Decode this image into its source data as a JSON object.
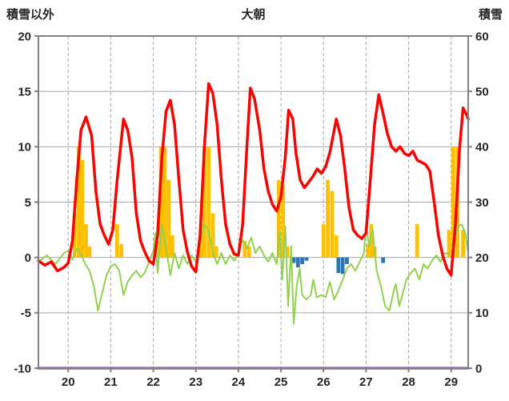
{
  "header": {
    "left_axis_title": "積雪以外",
    "title": "大朝",
    "right_axis_title": "積雪"
  },
  "chart_data": {
    "type": "combo",
    "title": "大朝",
    "x_axis": {
      "min": 19.3,
      "max": 29.4,
      "ticks": [
        20,
        21,
        22,
        23,
        24,
        25,
        26,
        27,
        28,
        29
      ]
    },
    "left_axis": {
      "label": "積雪以外",
      "min": -10,
      "max": 20,
      "tick_step": 5,
      "ticks": [
        20,
        15,
        10,
        5,
        0,
        -5,
        -10
      ]
    },
    "right_axis": {
      "label": "積雪",
      "min": 0,
      "max": 60,
      "tick_step": 10,
      "ticks": [
        60,
        50,
        40,
        30,
        20,
        10,
        0
      ]
    },
    "grid": {
      "h_color": "#a6a6a6",
      "v_color": "#a6a6a6",
      "v_dashed": true,
      "border_color": "#808080",
      "text_color": "#262626"
    },
    "legend": "none",
    "series": [
      {
        "name": "orange-bars",
        "type": "bar",
        "axis": "left",
        "color": "#FFC000",
        "bar_width": 0.09,
        "values": [
          [
            20.15,
            4
          ],
          [
            20.25,
            10
          ],
          [
            20.33,
            8.8
          ],
          [
            20.42,
            3
          ],
          [
            20.5,
            1
          ],
          [
            21.15,
            3
          ],
          [
            21.25,
            1.2
          ],
          [
            22.1,
            1.5
          ],
          [
            22.18,
            10
          ],
          [
            22.27,
            10
          ],
          [
            22.36,
            7
          ],
          [
            22.45,
            2
          ],
          [
            23.12,
            3
          ],
          [
            23.2,
            10
          ],
          [
            23.3,
            10
          ],
          [
            23.4,
            4
          ],
          [
            23.48,
            1
          ],
          [
            24.15,
            1.5
          ],
          [
            24.25,
            1
          ],
          [
            24.95,
            7
          ],
          [
            25.05,
            6.5
          ],
          [
            25.15,
            1
          ],
          [
            26.0,
            3
          ],
          [
            26.1,
            7
          ],
          [
            26.2,
            6
          ],
          [
            26.3,
            2
          ],
          [
            27.05,
            1.2
          ],
          [
            27.12,
            3
          ],
          [
            27.2,
            1
          ],
          [
            28.2,
            3
          ],
          [
            28.95,
            2.5
          ],
          [
            29.05,
            10
          ],
          [
            29.15,
            10
          ],
          [
            29.28,
            2.5
          ]
        ]
      },
      {
        "name": "blue-bars",
        "type": "bar",
        "axis": "left",
        "color": "#2E75B6",
        "bar_width": 0.09,
        "values": [
          [
            25.3,
            -0.5
          ],
          [
            25.4,
            -0.9
          ],
          [
            25.5,
            -0.6
          ],
          [
            25.6,
            -0.3
          ],
          [
            26.35,
            -1.4
          ],
          [
            26.45,
            -1.5
          ],
          [
            26.55,
            -0.6
          ],
          [
            27.4,
            -0.5
          ]
        ]
      },
      {
        "name": "purple-line",
        "type": "line",
        "axis": "right",
        "color": "#7030A0",
        "width": 3,
        "points": [
          [
            19.3,
            0
          ],
          [
            29.4,
            0
          ]
        ]
      },
      {
        "name": "green-line",
        "type": "line",
        "axis": "left",
        "color": "#92D050",
        "width": 2,
        "points": [
          [
            19.3,
            -0.4
          ],
          [
            19.5,
            0.2
          ],
          [
            19.7,
            -0.6
          ],
          [
            19.9,
            0.4
          ],
          [
            20.0,
            0.6
          ],
          [
            20.1,
            -0.2
          ],
          [
            20.2,
            0.8
          ],
          [
            20.3,
            0.3
          ],
          [
            20.4,
            -0.6
          ],
          [
            20.5,
            -1.2
          ],
          [
            20.6,
            -2.5
          ],
          [
            20.7,
            -4.8
          ],
          [
            20.8,
            -3.2
          ],
          [
            20.9,
            -1.6
          ],
          [
            21.0,
            -0.8
          ],
          [
            21.1,
            -0.6
          ],
          [
            21.2,
            -1.2
          ],
          [
            21.3,
            -3.4
          ],
          [
            21.4,
            -2.2
          ],
          [
            21.5,
            -1.6
          ],
          [
            21.6,
            -1.2
          ],
          [
            21.7,
            -1.8
          ],
          [
            21.8,
            -1.4
          ],
          [
            21.9,
            -0.4
          ],
          [
            22.0,
            0.6
          ],
          [
            22.05,
            2.2
          ],
          [
            22.1,
            -1.4
          ],
          [
            22.2,
            3
          ],
          [
            22.3,
            0.8
          ],
          [
            22.4,
            -1.6
          ],
          [
            22.5,
            0.4
          ],
          [
            22.6,
            -1
          ],
          [
            22.7,
            0.2
          ],
          [
            22.8,
            -0.6
          ],
          [
            22.9,
            0.2
          ],
          [
            23.0,
            -0.4
          ],
          [
            23.1,
            1.2
          ],
          [
            23.2,
            3
          ],
          [
            23.3,
            2.4
          ],
          [
            23.4,
            0.4
          ],
          [
            23.5,
            -0.6
          ],
          [
            23.6,
            0.4
          ],
          [
            23.7,
            -0.6
          ],
          [
            23.8,
            0.2
          ],
          [
            23.9,
            -0.3
          ],
          [
            24.0,
            0.4
          ],
          [
            24.1,
            1.6
          ],
          [
            24.2,
            0.8
          ],
          [
            24.3,
            1.8
          ],
          [
            24.4,
            0.4
          ],
          [
            24.5,
            1
          ],
          [
            24.6,
            0.2
          ],
          [
            24.7,
            -0.4
          ],
          [
            24.8,
            0.4
          ],
          [
            24.9,
            -0.6
          ],
          [
            24.97,
            2.4
          ],
          [
            25.03,
            -2
          ],
          [
            25.1,
            2.8
          ],
          [
            25.17,
            -4.4
          ],
          [
            25.24,
            1
          ],
          [
            25.3,
            -6
          ],
          [
            25.37,
            -2.6
          ],
          [
            25.44,
            -1
          ],
          [
            25.5,
            -3.4
          ],
          [
            25.6,
            -3.8
          ],
          [
            25.7,
            -3.4
          ],
          [
            25.76,
            -2
          ],
          [
            25.84,
            -3.6
          ],
          [
            25.95,
            -3.4
          ],
          [
            26.05,
            -3.6
          ],
          [
            26.15,
            -2.2
          ],
          [
            26.25,
            -3.8
          ],
          [
            26.35,
            -3
          ],
          [
            26.45,
            -2
          ],
          [
            26.55,
            -1
          ],
          [
            26.65,
            -0.6
          ],
          [
            26.75,
            -1.2
          ],
          [
            26.85,
            -0.4
          ],
          [
            26.95,
            0.4
          ],
          [
            27.0,
            3
          ],
          [
            27.07,
            1
          ],
          [
            27.15,
            2.6
          ],
          [
            27.25,
            -1.2
          ],
          [
            27.35,
            -2.6
          ],
          [
            27.45,
            -4.4
          ],
          [
            27.55,
            -4.8
          ],
          [
            27.65,
            -3
          ],
          [
            27.7,
            -2.4
          ],
          [
            27.78,
            -4.4
          ],
          [
            27.85,
            -3.4
          ],
          [
            27.95,
            -2
          ],
          [
            28.05,
            -1.4
          ],
          [
            28.15,
            -1
          ],
          [
            28.25,
            -2
          ],
          [
            28.35,
            -0.6
          ],
          [
            28.45,
            -1
          ],
          [
            28.55,
            -0.3
          ],
          [
            28.65,
            0.2
          ],
          [
            28.75,
            -0.4
          ],
          [
            28.85,
            0.4
          ],
          [
            28.95,
            0.3
          ],
          [
            29.05,
            0.6
          ],
          [
            29.15,
            2.8
          ],
          [
            29.25,
            3
          ],
          [
            29.33,
            2.2
          ],
          [
            29.4,
            0.4
          ]
        ]
      },
      {
        "name": "red-line",
        "type": "line",
        "axis": "left",
        "color": "#FF0000",
        "width": 3.5,
        "points": [
          [
            19.3,
            -0.3
          ],
          [
            19.45,
            -0.7
          ],
          [
            19.6,
            -0.4
          ],
          [
            19.75,
            -1.2
          ],
          [
            19.9,
            -0.9
          ],
          [
            20.0,
            -0.5
          ],
          [
            20.1,
            1.5
          ],
          [
            20.2,
            7
          ],
          [
            20.3,
            11.5
          ],
          [
            20.42,
            12.7
          ],
          [
            20.55,
            11
          ],
          [
            20.65,
            6
          ],
          [
            20.75,
            3
          ],
          [
            20.85,
            2
          ],
          [
            20.95,
            1.2
          ],
          [
            21.05,
            2.5
          ],
          [
            21.15,
            7
          ],
          [
            21.3,
            12.5
          ],
          [
            21.4,
            11.5
          ],
          [
            21.5,
            9
          ],
          [
            21.6,
            4
          ],
          [
            21.7,
            1.5
          ],
          [
            21.8,
            0.5
          ],
          [
            21.9,
            -0.3
          ],
          [
            22.0,
            -0.6
          ],
          [
            22.1,
            2
          ],
          [
            22.2,
            9
          ],
          [
            22.3,
            13.2
          ],
          [
            22.4,
            14.2
          ],
          [
            22.5,
            12
          ],
          [
            22.6,
            7
          ],
          [
            22.7,
            2.5
          ],
          [
            22.8,
            0.5
          ],
          [
            22.9,
            -0.8
          ],
          [
            23.0,
            -1.3
          ],
          [
            23.1,
            2
          ],
          [
            23.2,
            10
          ],
          [
            23.3,
            15.7
          ],
          [
            23.4,
            14.8
          ],
          [
            23.5,
            12
          ],
          [
            23.6,
            7
          ],
          [
            23.7,
            3
          ],
          [
            23.8,
            1.2
          ],
          [
            23.9,
            0.3
          ],
          [
            24.0,
            0.2
          ],
          [
            24.1,
            3
          ],
          [
            24.2,
            10
          ],
          [
            24.28,
            15.3
          ],
          [
            24.38,
            14.3
          ],
          [
            24.5,
            11.5
          ],
          [
            24.6,
            8
          ],
          [
            24.7,
            6
          ],
          [
            24.8,
            4.8
          ],
          [
            24.9,
            4.2
          ],
          [
            25.0,
            5.5
          ],
          [
            25.1,
            9
          ],
          [
            25.18,
            13.3
          ],
          [
            25.28,
            12.5
          ],
          [
            25.35,
            9.5
          ],
          [
            25.45,
            7
          ],
          [
            25.55,
            6.3
          ],
          [
            25.65,
            6.8
          ],
          [
            25.75,
            7.3
          ],
          [
            25.85,
            8
          ],
          [
            25.95,
            7.6
          ],
          [
            26.05,
            8.2
          ],
          [
            26.15,
            9.5
          ],
          [
            26.3,
            12.5
          ],
          [
            26.4,
            11
          ],
          [
            26.5,
            8
          ],
          [
            26.6,
            4.5
          ],
          [
            26.7,
            2.5
          ],
          [
            26.8,
            2
          ],
          [
            26.9,
            1.7
          ],
          [
            27.0,
            2.2
          ],
          [
            27.1,
            7
          ],
          [
            27.2,
            12
          ],
          [
            27.3,
            14.7
          ],
          [
            27.4,
            13
          ],
          [
            27.5,
            11.2
          ],
          [
            27.6,
            10
          ],
          [
            27.7,
            9.6
          ],
          [
            27.8,
            10
          ],
          [
            27.9,
            9.4
          ],
          [
            28.0,
            9.2
          ],
          [
            28.1,
            9.6
          ],
          [
            28.2,
            8.8
          ],
          [
            28.3,
            8.6
          ],
          [
            28.4,
            8.4
          ],
          [
            28.5,
            7.8
          ],
          [
            28.6,
            5
          ],
          [
            28.7,
            2
          ],
          [
            28.8,
            0.2
          ],
          [
            28.9,
            -1
          ],
          [
            29.0,
            -1.6
          ],
          [
            29.1,
            3
          ],
          [
            29.2,
            10
          ],
          [
            29.28,
            13.5
          ],
          [
            29.35,
            13
          ],
          [
            29.4,
            12.5
          ]
        ]
      }
    ]
  }
}
